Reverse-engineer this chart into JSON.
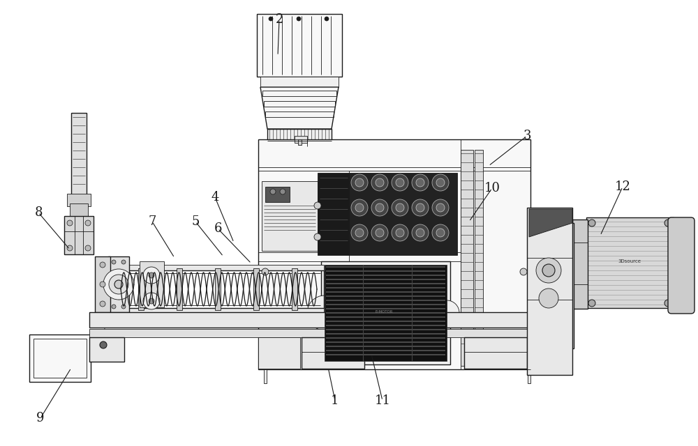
{
  "bg_color": "#ffffff",
  "line_color": "#1a1a1a",
  "fig_width": 10.0,
  "fig_height": 6.4,
  "dpi": 100,
  "label_configs": [
    [
      "1",
      480,
      575,
      470,
      527
    ],
    [
      "2",
      400,
      28,
      398,
      80
    ],
    [
      "3",
      755,
      195,
      700,
      238
    ],
    [
      "4",
      308,
      283,
      335,
      348
    ],
    [
      "5",
      280,
      318,
      320,
      368
    ],
    [
      "6",
      312,
      328,
      360,
      378
    ],
    [
      "7",
      218,
      318,
      250,
      370
    ],
    [
      "8",
      55,
      305,
      100,
      358
    ],
    [
      "9",
      58,
      600,
      102,
      528
    ],
    [
      "10",
      705,
      270,
      672,
      318
    ],
    [
      "11",
      548,
      575,
      532,
      508
    ],
    [
      "12",
      892,
      268,
      860,
      338
    ]
  ]
}
